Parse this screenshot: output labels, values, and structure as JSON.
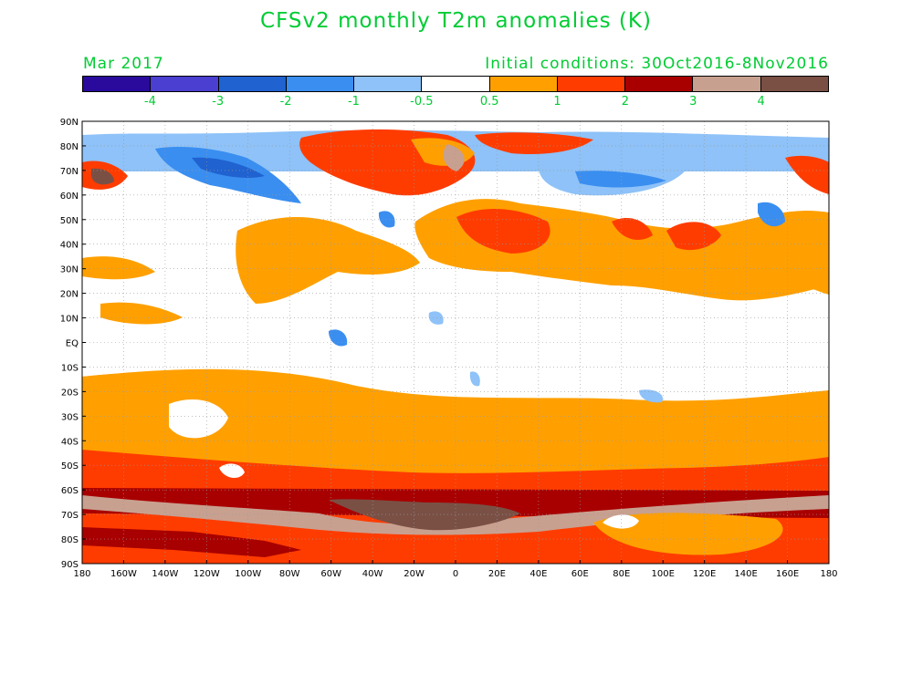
{
  "title": "CFSv2 monthly T2m anomalies (K)",
  "valid_month": "Mar 2017",
  "initial_conditions": "Initial conditions: 30Oct2016-8Nov2016",
  "colorbar": {
    "colors": [
      "#2a0a9c",
      "#4a3fd0",
      "#1f62d0",
      "#3a8ef0",
      "#8ec2f8",
      "#ffffff",
      "#ffa000",
      "#ff3c00",
      "#a80000",
      "#c8a090",
      "#7a5045"
    ],
    "labels": [
      "-4",
      "-3",
      "-2",
      "-1",
      "-0.5",
      "0.5",
      "1",
      "2",
      "3",
      "4"
    ]
  },
  "axes": {
    "lat_labels": [
      "90N",
      "80N",
      "70N",
      "60N",
      "50N",
      "40N",
      "30N",
      "20N",
      "10N",
      "EQ",
      "10S",
      "20S",
      "30S",
      "40S",
      "50S",
      "60S",
      "70S",
      "80S",
      "90S"
    ],
    "lon_labels": [
      "180",
      "160W",
      "140W",
      "120W",
      "100W",
      "80W",
      "60W",
      "40W",
      "20W",
      "0",
      "20E",
      "40E",
      "60E",
      "80E",
      "100E",
      "120E",
      "140E",
      "160E",
      "180"
    ]
  }
}
